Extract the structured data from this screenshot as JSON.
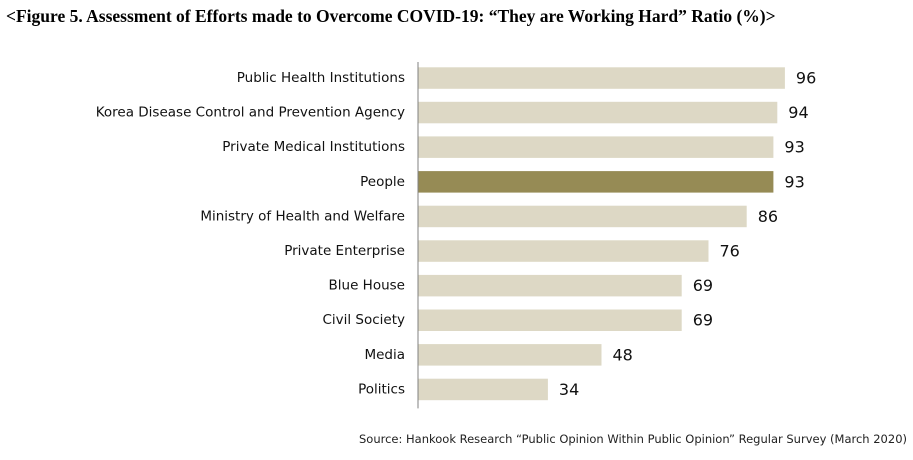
{
  "title": "<Figure 5. Assessment of Efforts made to Overcome COVID-19: “They are Working Hard” Ratio (%)>",
  "source": "Source: Hankook Research “Public Opinion Within Public Opinion” Regular Survey (March 2020)",
  "colors": {
    "bar": "#ddd8c5",
    "highlight": "#968b55",
    "axis": "#808080"
  },
  "chart_data": {
    "type": "bar",
    "orientation": "horizontal",
    "title": "<Figure 5. Assessment of Efforts made to Overcome COVID-19: “They are Working Hard” Ratio (%)>",
    "categories": [
      "Public Health Institutions",
      "Korea Disease Control and Prevention Agency",
      "Private Medical Institutions",
      "People",
      "Ministry of Health and Welfare",
      "Private Enterprise",
      "Blue House",
      "Civil Society",
      "Media",
      "Politics"
    ],
    "values": [
      96,
      94,
      93,
      93,
      86,
      76,
      69,
      69,
      48,
      34
    ],
    "highlighted": "People",
    "xlim": [
      0,
      100
    ],
    "grid": false,
    "legend": "none"
  }
}
